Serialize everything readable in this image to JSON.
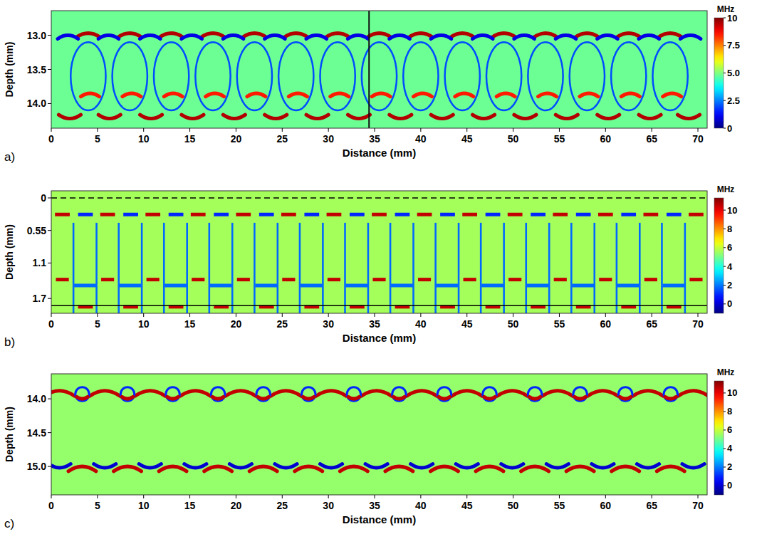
{
  "chart_data": [
    {
      "type": "heatmap",
      "letter": "a)",
      "xlabel": "Distance (mm)",
      "ylabel": "Depth (mm)",
      "xlim": [
        0,
        71
      ],
      "xticks": [
        0,
        5,
        10,
        15,
        20,
        25,
        30,
        35,
        40,
        45,
        50,
        55,
        60,
        65,
        70
      ],
      "ylim": [
        12.64,
        14.36
      ],
      "yticks": [
        {
          "value": 13,
          "label": "13.0"
        },
        13.5,
        {
          "value": 14,
          "label": "14.0"
        }
      ],
      "colorbar": {
        "label": "MHz",
        "range": [
          0,
          10
        ],
        "ticks": [
          0,
          2.5,
          {
            "value": 5,
            "label": "5.0"
          },
          7.5,
          10
        ]
      },
      "background": 4.8,
      "cursor": 34.4,
      "bands": [
        {
          "shape": "loop",
          "value": 2,
          "depth": 13.1,
          "depth_end": 14.1,
          "width": 3.8,
          "x": [
            4,
            8.5,
            13,
            17.5,
            22,
            26.5,
            31,
            35.5,
            40,
            44.5,
            49,
            53.5,
            58,
            62.5,
            67
          ]
        },
        {
          "shape": "arc_up",
          "value": 9.5,
          "depth": 12.97,
          "width": 2.6,
          "x": [
            4,
            8.5,
            13,
            17.5,
            22,
            26.5,
            31,
            35.5,
            40,
            44.5,
            49,
            53.5,
            58,
            62.5,
            67
          ]
        },
        {
          "shape": "arc_up",
          "value": 1,
          "depth": 13.0,
          "width": 2.2,
          "x": [
            1.8,
            6.2,
            10.7,
            15.2,
            19.7,
            24.2,
            28.7,
            33.2,
            37.7,
            42.2,
            46.7,
            51.2,
            55.7,
            60.2,
            64.7,
            69.2
          ]
        },
        {
          "shape": "arc_up",
          "value": 8.5,
          "depth": 13.85,
          "width": 2,
          "x": [
            4.2,
            8.7,
            13.2,
            17.7,
            22.2,
            26.7,
            31.2,
            35.7,
            40.2,
            44.7,
            49.2,
            53.7,
            58.2,
            62.7,
            67.2
          ]
        },
        {
          "shape": "arc_down",
          "value": 9.5,
          "depth": 14.22,
          "width": 2.4,
          "x": [
            2,
            6.3,
            10.8,
            15.3,
            19.8,
            24.3,
            28.8,
            33.3,
            37.8,
            42.3,
            46.8,
            51.3,
            55.8,
            60.3,
            64.8,
            69
          ]
        }
      ]
    },
    {
      "type": "heatmap",
      "letter": "b)",
      "xlabel": "Distance (mm)",
      "ylabel": "Depth (mm)",
      "xlim": [
        0,
        71
      ],
      "xticks": [
        0,
        5,
        10,
        15,
        20,
        25,
        30,
        35,
        40,
        45,
        50,
        55,
        60,
        65,
        70
      ],
      "ylim": [
        -0.12,
        1.95
      ],
      "yticks": [
        0,
        0.55,
        1.1,
        1.7
      ],
      "colorbar": {
        "label": "MHz",
        "range": [
          -1,
          11.3
        ],
        "ticks": [
          0,
          2,
          4,
          6,
          8,
          10
        ]
      },
      "background": 5.6,
      "ref_lines": [
        {
          "depth": 0,
          "line_style": "dashed",
          "color": "#000000"
        },
        {
          "depth": 1.82,
          "line_style": "solid",
          "color": "#000000"
        }
      ],
      "bands": [
        {
          "shape": "vline",
          "value": 1.8,
          "depth": 0.42,
          "depth_end": 1.95,
          "width": 0.2,
          "x": [
            2.4,
            4.9,
            7.3,
            9.8,
            12.2,
            14.7,
            17.1,
            19.6,
            22.0,
            24.5,
            26.9,
            29.4,
            31.8,
            34.3,
            36.7,
            39.2,
            41.6,
            44.1,
            46.5,
            49.0,
            51.4,
            53.9,
            56.3,
            58.8,
            61.2,
            63.7,
            66.1,
            68.6
          ]
        },
        {
          "shape": "dash",
          "value": 1.8,
          "depth": 1.48,
          "width": 2.45,
          "x": [
            3.7,
            8.6,
            13.5,
            18.4,
            23.3,
            28.2,
            33.1,
            38.0,
            42.9,
            47.8,
            52.7,
            57.6,
            62.5,
            67.4
          ]
        },
        {
          "shape": "dash",
          "value": 10.5,
          "depth": 0.28,
          "width": 1.6,
          "x": [
            1.2,
            6.1,
            11.0,
            15.9,
            20.8,
            25.7,
            30.6,
            35.5,
            40.4,
            45.3,
            50.2,
            55.1,
            60.0,
            64.9,
            69.8
          ]
        },
        {
          "shape": "dash",
          "value": 1,
          "depth": 0.28,
          "width": 1.6,
          "x": [
            3.7,
            8.6,
            13.5,
            18.4,
            23.3,
            28.2,
            33.1,
            38.0,
            42.9,
            47.8,
            52.7,
            57.6,
            62.5,
            67.4
          ]
        },
        {
          "shape": "dash",
          "value": 10.5,
          "depth": 1.38,
          "width": 1.4,
          "x": [
            1.2,
            6.1,
            11.0,
            15.9,
            20.8,
            25.7,
            30.6,
            35.5,
            40.4,
            45.3,
            50.2,
            55.1,
            60.0,
            64.9,
            69.8
          ]
        },
        {
          "shape": "dash",
          "value": 10.5,
          "depth": 1.84,
          "width": 1.6,
          "x": [
            3.7,
            8.6,
            13.5,
            18.4,
            23.3,
            28.2,
            33.1,
            38.0,
            42.9,
            47.8,
            52.7,
            57.6,
            62.5,
            67.4
          ]
        }
      ]
    },
    {
      "type": "heatmap",
      "letter": "c)",
      "xlabel": "Distance (mm)",
      "ylabel": "Depth (mm)",
      "xlim": [
        0,
        71
      ],
      "xticks": [
        0,
        5,
        10,
        15,
        20,
        25,
        30,
        35,
        40,
        45,
        50,
        55,
        60,
        65,
        70
      ],
      "ylim": [
        13.63,
        15.42
      ],
      "yticks": [
        {
          "value": 14,
          "label": "14.0"
        },
        14.5,
        {
          "value": 15,
          "label": "15.0"
        }
      ],
      "colorbar": {
        "label": "MHz",
        "range": [
          -1,
          11.3
        ],
        "ticks": [
          0,
          2,
          4,
          6,
          8,
          10
        ]
      },
      "background": 5.4,
      "bands": [
        {
          "shape": "arc_up",
          "value": 10.5,
          "depth": 13.88,
          "width": 3.2,
          "x": [
            0.9,
            5.8,
            10.7,
            15.6,
            20.5,
            25.4,
            30.3,
            35.2,
            40.1,
            45.0,
            49.9,
            54.8,
            59.7,
            64.6,
            69.5
          ]
        },
        {
          "shape": "ring",
          "value": 1,
          "depth": 13.93,
          "width": 1.5,
          "x": [
            3.35,
            8.25,
            13.15,
            18.05,
            22.95,
            27.85,
            32.75,
            37.65,
            42.55,
            47.45,
            52.35,
            57.25,
            62.15,
            67.05
          ]
        },
        {
          "shape": "arc_down",
          "value": 10.5,
          "depth": 14.0,
          "width": 1.2,
          "x": [
            3.35,
            8.25,
            13.15,
            18.05,
            22.95,
            27.85,
            32.75,
            37.65,
            42.55,
            47.45,
            52.35,
            57.25,
            62.15,
            67.05
          ]
        },
        {
          "shape": "arc_up",
          "value": 10.5,
          "depth": 15.0,
          "width": 3,
          "x": [
            3.35,
            8.25,
            13.15,
            18.05,
            22.95,
            27.85,
            32.75,
            37.65,
            42.55,
            47.45,
            52.35,
            57.25,
            62.15,
            67.05
          ]
        },
        {
          "shape": "arc_down",
          "value": 0,
          "depth": 15.02,
          "width": 2.4,
          "x": [
            0.9,
            5.8,
            10.7,
            15.6,
            20.5,
            25.4,
            30.3,
            35.2,
            40.1,
            45.0,
            49.9,
            54.8,
            59.7,
            64.6,
            69.5
          ]
        }
      ]
    }
  ]
}
